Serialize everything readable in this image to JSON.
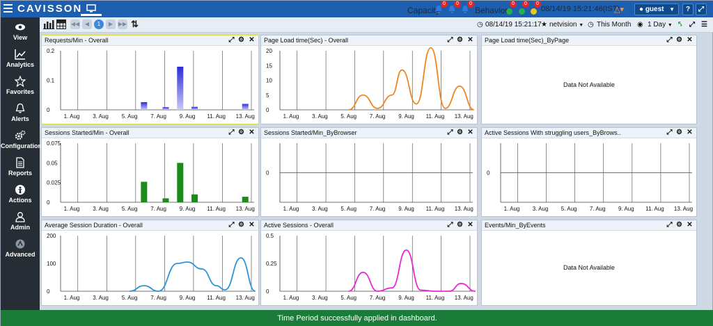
{
  "header": {
    "logo": "CAVISSON",
    "capacity_label": "Capacity",
    "behavior_label": "Behavior",
    "capacity_badges": [
      "0",
      "0",
      "0"
    ],
    "behavior_badges": [
      "0",
      "0",
      "0"
    ],
    "datetime": "08/14/19 15:21:46(IST)",
    "user": "guest",
    "help_label": "?"
  },
  "sidebar": {
    "items": [
      {
        "label": "View",
        "icon": "eye-icon"
      },
      {
        "label": "Analytics",
        "icon": "line-chart-icon"
      },
      {
        "label": "Favorites",
        "icon": "star-icon"
      },
      {
        "label": "Alerts",
        "icon": "bell-icon"
      },
      {
        "label": "Configuration",
        "icon": "gears-icon"
      },
      {
        "label": "Reports",
        "icon": "document-icon"
      },
      {
        "label": "Actions",
        "icon": "actions-icon"
      },
      {
        "label": "Admin",
        "icon": "user-icon"
      },
      {
        "label": "Advanced",
        "icon": "advanced-icon"
      }
    ]
  },
  "toolbar": {
    "current_page": "1",
    "time": "08/14/19 15:21:17",
    "favorite": "netvision",
    "period": "This Month",
    "view_range": "1 Day"
  },
  "panels": [
    {
      "title": "Requests/Min - Overall"
    },
    {
      "title": "Page Load time(Sec) - Overall"
    },
    {
      "title": "Page Load time(Sec)_ByPage",
      "nodata": "Data Not Available"
    },
    {
      "title": "Sessions Started/Min - Overall"
    },
    {
      "title": "Sessions Started/Min_ByBrowser"
    },
    {
      "title": "Active Sessions With struggling users_ByBrows.."
    },
    {
      "title": "Average Session Duration - Overall"
    },
    {
      "title": "Active Sessions - Overall"
    },
    {
      "title": "Events/Min_ByEvents",
      "nodata": "Data Not Available"
    }
  ],
  "status": "Time Period successfully applied in dashboard.",
  "chart_data": [
    {
      "type": "bar",
      "title": "Requests/Min - Overall",
      "color": "#2b2bd6",
      "x": [
        "1. Aug",
        "3. Aug",
        "5. Aug",
        "7. Aug",
        "9. Aug",
        "11. Aug",
        "13. Aug"
      ],
      "yticks": [
        "0.2",
        "0.1",
        "0"
      ],
      "ylim": [
        0,
        0.2
      ],
      "points": [
        [
          6,
          0.026
        ],
        [
          7.5,
          0.009
        ],
        [
          8.5,
          0.146
        ],
        [
          9.5,
          0.01
        ],
        [
          13,
          0.02
        ]
      ]
    },
    {
      "type": "line",
      "title": "Page Load time(Sec) - Overall",
      "color": "#f0851f",
      "x": [
        "1. Aug",
        "3. Aug",
        "5. Aug",
        "7. Aug",
        "9. Aug",
        "11. Aug",
        "13. Aug"
      ],
      "yticks": [
        "20",
        "15",
        "10",
        "5",
        "0"
      ],
      "ylim": [
        0,
        20
      ],
      "points": [
        [
          5,
          0
        ],
        [
          6,
          5
        ],
        [
          7,
          0.5
        ],
        [
          8,
          5
        ],
        [
          8.7,
          13.5
        ],
        [
          9.7,
          2
        ],
        [
          10.7,
          21
        ],
        [
          11.7,
          0.5
        ],
        [
          12.7,
          8
        ],
        [
          13.7,
          0
        ]
      ]
    },
    null,
    {
      "type": "bar",
      "title": "Sessions Started/Min - Overall",
      "color": "#1c8a1c",
      "x": [
        "1. Aug",
        "3. Aug",
        "5. Aug",
        "7. Aug",
        "9. Aug",
        "11. Aug",
        "13. Aug"
      ],
      "yticks": [
        "0.075",
        "0.05",
        "0.025",
        "0"
      ],
      "ylim": [
        0,
        0.075
      ],
      "points": [
        [
          6,
          0.026
        ],
        [
          7.5,
          0.005
        ],
        [
          8.5,
          0.05
        ],
        [
          9.5,
          0.01
        ],
        [
          13,
          0.007
        ]
      ]
    },
    {
      "type": "empty",
      "title": "Sessions Started/Min_ByBrowser",
      "x": [
        "1. Aug",
        "3. Aug",
        "5. Aug",
        "7. Aug",
        "9. Aug",
        "11. Aug",
        "13. Aug"
      ],
      "yticks": [
        "0"
      ]
    },
    {
      "type": "empty",
      "title": "Active Sessions With struggling users_ByBrows..",
      "x": [
        "1. Aug",
        "3. Aug",
        "5. Aug",
        "7. Aug",
        "9. Aug",
        "11. Aug",
        "13. Aug"
      ],
      "yticks": [
        "0"
      ]
    },
    {
      "type": "line",
      "title": "Average Session Duration - Overall",
      "color": "#2a95d9",
      "x": [
        "1. Aug",
        "3. Aug",
        "5. Aug",
        "7. Aug",
        "9. Aug",
        "11. Aug",
        "13. Aug"
      ],
      "yticks": [
        "200",
        "100",
        "0"
      ],
      "ylim": [
        0,
        200
      ],
      "points": [
        [
          5,
          0
        ],
        [
          6,
          20
        ],
        [
          7,
          0
        ],
        [
          8.3,
          100
        ],
        [
          9,
          105
        ],
        [
          10,
          80
        ],
        [
          11,
          20
        ],
        [
          11.6,
          5
        ],
        [
          12.7,
          120
        ],
        [
          13.7,
          0
        ]
      ]
    },
    {
      "type": "line",
      "title": "Active Sessions - Overall",
      "color": "#ea28d7",
      "x": [
        "1. Aug",
        "3. Aug",
        "5. Aug",
        "7. Aug",
        "9. Aug",
        "11. Aug",
        "13. Aug"
      ],
      "yticks": [
        "0.5",
        "0.25",
        "0"
      ],
      "ylim": [
        0,
        0.5
      ],
      "points": [
        [
          5,
          0
        ],
        [
          6,
          0.17
        ],
        [
          7,
          0
        ],
        [
          8,
          0.03
        ],
        [
          9,
          0.37
        ],
        [
          10,
          0.01
        ],
        [
          11,
          0
        ],
        [
          12,
          0
        ],
        [
          12.8,
          0.07
        ],
        [
          13.8,
          0
        ]
      ]
    },
    null
  ]
}
